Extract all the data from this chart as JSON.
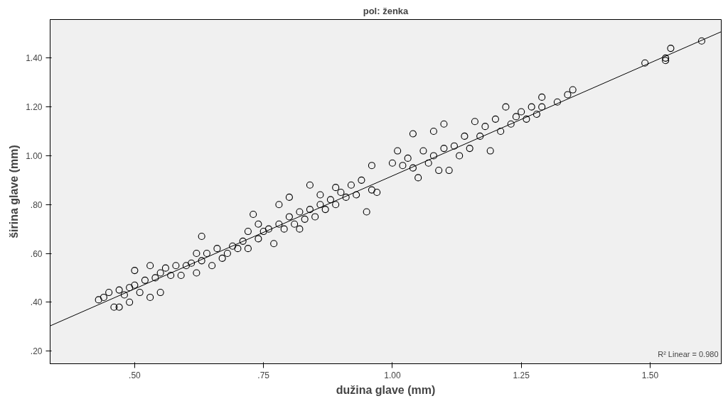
{
  "chart_data": {
    "type": "scatter",
    "title": "pol: ženka",
    "xlabel": "dužina glave (mm)",
    "ylabel": "širina glave (mm)",
    "xlim": [
      0.336,
      1.638
    ],
    "ylim": [
      0.148,
      1.558
    ],
    "xticks": [
      {
        "value": 0.5,
        "label": ".50"
      },
      {
        "value": 0.75,
        "label": ".75"
      },
      {
        "value": 1.0,
        "label": "1.00"
      },
      {
        "value": 1.25,
        "label": "1.25"
      },
      {
        "value": 1.5,
        "label": "1.50"
      }
    ],
    "yticks": [
      {
        "value": 0.2,
        "label": ".20"
      },
      {
        "value": 0.4,
        "label": ".40"
      },
      {
        "value": 0.6,
        "label": ".60"
      },
      {
        "value": 0.8,
        "label": ".80"
      },
      {
        "value": 1.0,
        "label": "1.00"
      },
      {
        "value": 1.2,
        "label": "1.20"
      },
      {
        "value": 1.4,
        "label": "1.40"
      }
    ],
    "grid": false,
    "annotations": [
      "R² Linear = 0.980"
    ],
    "series": [
      {
        "marker": "circle",
        "color": "#000000",
        "x": [
          0.43,
          0.44,
          0.45,
          0.46,
          0.47,
          0.47,
          0.48,
          0.49,
          0.49,
          0.5,
          0.5,
          0.51,
          0.52,
          0.53,
          0.53,
          0.54,
          0.55,
          0.55,
          0.56,
          0.57,
          0.58,
          0.59,
          0.6,
          0.61,
          0.62,
          0.62,
          0.63,
          0.63,
          0.64,
          0.65,
          0.66,
          0.67,
          0.68,
          0.69,
          0.7,
          0.71,
          0.72,
          0.72,
          0.73,
          0.74,
          0.74,
          0.75,
          0.76,
          0.77,
          0.78,
          0.78,
          0.79,
          0.8,
          0.8,
          0.81,
          0.82,
          0.82,
          0.83,
          0.84,
          0.84,
          0.85,
          0.86,
          0.86,
          0.87,
          0.88,
          0.89,
          0.89,
          0.9,
          0.91,
          0.92,
          0.93,
          0.94,
          0.95,
          0.96,
          0.96,
          0.97,
          1.0,
          1.01,
          1.02,
          1.03,
          1.04,
          1.04,
          1.05,
          1.06,
          1.07,
          1.08,
          1.08,
          1.09,
          1.1,
          1.1,
          1.11,
          1.12,
          1.13,
          1.14,
          1.15,
          1.16,
          1.17,
          1.18,
          1.19,
          1.2,
          1.21,
          1.22,
          1.23,
          1.24,
          1.25,
          1.26,
          1.27,
          1.28,
          1.29,
          1.29,
          1.32,
          1.34,
          1.35,
          1.49,
          1.53,
          1.53,
          1.54,
          1.6
        ],
        "values": [
          0.41,
          0.42,
          0.44,
          0.38,
          0.38,
          0.45,
          0.43,
          0.4,
          0.46,
          0.47,
          0.53,
          0.44,
          0.49,
          0.55,
          0.42,
          0.5,
          0.52,
          0.44,
          0.54,
          0.51,
          0.55,
          0.51,
          0.55,
          0.56,
          0.6,
          0.52,
          0.67,
          0.57,
          0.6,
          0.55,
          0.62,
          0.58,
          0.6,
          0.63,
          0.62,
          0.65,
          0.69,
          0.62,
          0.76,
          0.66,
          0.72,
          0.69,
          0.7,
          0.64,
          0.72,
          0.8,
          0.7,
          0.75,
          0.83,
          0.72,
          0.77,
          0.7,
          0.74,
          0.78,
          0.88,
          0.75,
          0.8,
          0.84,
          0.78,
          0.82,
          0.8,
          0.87,
          0.85,
          0.83,
          0.88,
          0.84,
          0.9,
          0.77,
          0.96,
          0.86,
          0.85,
          0.97,
          1.02,
          0.96,
          0.99,
          1.09,
          0.95,
          0.91,
          1.02,
          0.97,
          1.1,
          1.0,
          0.94,
          1.13,
          1.03,
          0.94,
          1.04,
          1.0,
          1.08,
          1.03,
          1.14,
          1.08,
          1.12,
          1.02,
          1.15,
          1.1,
          1.2,
          1.13,
          1.16,
          1.18,
          1.15,
          1.2,
          1.17,
          1.24,
          1.2,
          1.22,
          1.25,
          1.27,
          1.38,
          1.39,
          1.4,
          1.44,
          1.47
        ]
      },
      {
        "type": "line",
        "marker": "none",
        "color": "#000000",
        "x": [
          0.336,
          1.638
        ],
        "values": [
          0.303,
          1.508
        ]
      }
    ]
  }
}
